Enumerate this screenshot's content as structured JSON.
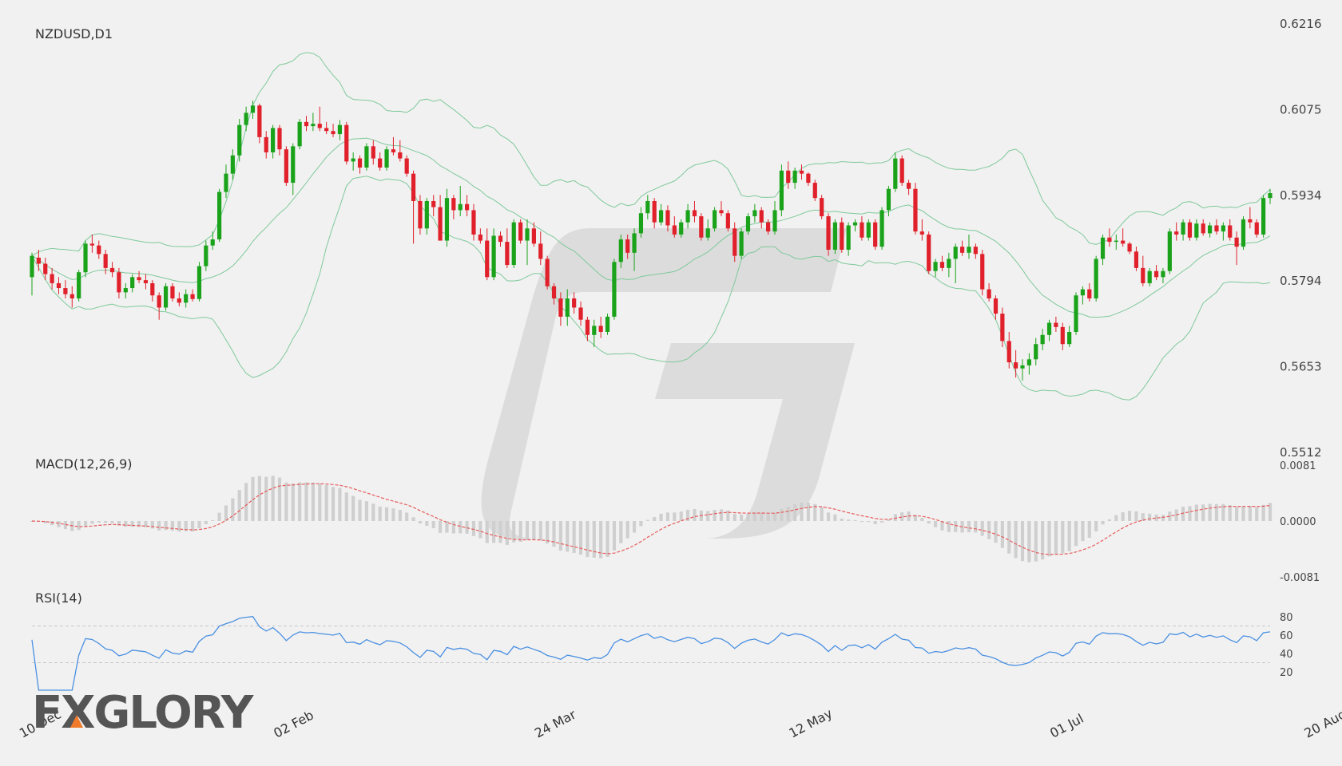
{
  "chart_data": {
    "type": "candlestick",
    "title": "NZDUSD,D1",
    "price_axis": {
      "ticks": [
        "0.6216",
        "0.6075",
        "0.5934",
        "0.5794",
        "0.5653",
        "0.5512"
      ],
      "range": [
        0.5512,
        0.6216
      ]
    },
    "date_labels": [
      "10 Dec",
      "02 Feb",
      "24 Mar",
      "12 May",
      "01 Jul",
      "20 Aug"
    ],
    "date_label_index": [
      0,
      38,
      77,
      115,
      154,
      192
    ],
    "colors": {
      "up": "#1aa31a",
      "down": "#e0202a",
      "bands": "#7fc99b",
      "macd_signal": "#e85a5a",
      "macd_hist": "#cfcfcf",
      "rsi": "#4a90e2"
    },
    "ohlc": [
      [
        0.58,
        0.584,
        0.577,
        0.5835
      ],
      [
        0.5832,
        0.5845,
        0.581,
        0.5822
      ],
      [
        0.5822,
        0.5832,
        0.5795,
        0.5805
      ],
      [
        0.5805,
        0.5815,
        0.578,
        0.579
      ],
      [
        0.579,
        0.58,
        0.5772,
        0.5782
      ],
      [
        0.5782,
        0.5795,
        0.5765,
        0.5772
      ],
      [
        0.5772,
        0.5785,
        0.575,
        0.5765
      ],
      [
        0.5765,
        0.5812,
        0.576,
        0.5808
      ],
      [
        0.5808,
        0.586,
        0.58,
        0.5855
      ],
      [
        0.5855,
        0.587,
        0.584,
        0.5852
      ],
      [
        0.5852,
        0.586,
        0.583,
        0.5838
      ],
      [
        0.5838,
        0.5845,
        0.5805,
        0.5815
      ],
      [
        0.5815,
        0.5825,
        0.58,
        0.5808
      ],
      [
        0.5808,
        0.5815,
        0.5765,
        0.5775
      ],
      [
        0.5775,
        0.579,
        0.5765,
        0.5782
      ],
      [
        0.5782,
        0.5805,
        0.5775,
        0.58
      ],
      [
        0.58,
        0.581,
        0.579,
        0.5795
      ],
      [
        0.5795,
        0.5805,
        0.578,
        0.579
      ],
      [
        0.579,
        0.5795,
        0.576,
        0.577
      ],
      [
        0.577,
        0.5775,
        0.573,
        0.575
      ],
      [
        0.575,
        0.579,
        0.5745,
        0.5785
      ],
      [
        0.5785,
        0.579,
        0.576,
        0.5765
      ],
      [
        0.5765,
        0.5775,
        0.5752,
        0.5758
      ],
      [
        0.5758,
        0.578,
        0.575,
        0.5772
      ],
      [
        0.5772,
        0.578,
        0.576,
        0.5764
      ],
      [
        0.5764,
        0.5825,
        0.576,
        0.5818
      ],
      [
        0.5818,
        0.586,
        0.581,
        0.5852
      ],
      [
        0.5852,
        0.5875,
        0.5845,
        0.5862
      ],
      [
        0.5862,
        0.5945,
        0.5858,
        0.594
      ],
      [
        0.594,
        0.5985,
        0.593,
        0.597
      ],
      [
        0.597,
        0.601,
        0.596,
        0.6
      ],
      [
        0.6,
        0.606,
        0.599,
        0.605
      ],
      [
        0.605,
        0.608,
        0.604,
        0.607
      ],
      [
        0.607,
        0.609,
        0.606,
        0.6082
      ],
      [
        0.6082,
        0.6085,
        0.602,
        0.603
      ],
      [
        0.603,
        0.604,
        0.5995,
        0.6005
      ],
      [
        0.6005,
        0.605,
        0.5995,
        0.6045
      ],
      [
        0.6045,
        0.605,
        0.6,
        0.601
      ],
      [
        0.601,
        0.6015,
        0.595,
        0.5955
      ],
      [
        0.5955,
        0.602,
        0.5935,
        0.6015
      ],
      [
        0.6015,
        0.606,
        0.601,
        0.6055
      ],
      [
        0.6055,
        0.6065,
        0.604,
        0.6048
      ],
      [
        0.6048,
        0.607,
        0.604,
        0.6052
      ],
      [
        0.6052,
        0.608,
        0.604,
        0.6045
      ],
      [
        0.6045,
        0.6055,
        0.6035,
        0.604
      ],
      [
        0.604,
        0.6052,
        0.603,
        0.6035
      ],
      [
        0.6035,
        0.6058,
        0.6025,
        0.605
      ],
      [
        0.605,
        0.6055,
        0.5985,
        0.599
      ],
      [
        0.599,
        0.6005,
        0.5975,
        0.5995
      ],
      [
        0.5995,
        0.6,
        0.597,
        0.598
      ],
      [
        0.598,
        0.602,
        0.5975,
        0.6015
      ],
      [
        0.6015,
        0.6025,
        0.5985,
        0.5995
      ],
      [
        0.5995,
        0.6005,
        0.5975,
        0.598
      ],
      [
        0.598,
        0.6015,
        0.5975,
        0.601
      ],
      [
        0.601,
        0.603,
        0.6,
        0.6005
      ],
      [
        0.6005,
        0.6025,
        0.599,
        0.5995
      ],
      [
        0.5995,
        0.6,
        0.5965,
        0.597
      ],
      [
        0.597,
        0.5975,
        0.5855,
        0.5925
      ],
      [
        0.5925,
        0.5935,
        0.587,
        0.588
      ],
      [
        0.588,
        0.593,
        0.587,
        0.5925
      ],
      [
        0.5925,
        0.5935,
        0.59,
        0.5915
      ],
      [
        0.5915,
        0.5935,
        0.586,
        0.586
      ],
      [
        0.586,
        0.5945,
        0.585,
        0.593
      ],
      [
        0.593,
        0.5935,
        0.5895,
        0.591
      ],
      [
        0.591,
        0.595,
        0.59,
        0.592
      ],
      [
        0.592,
        0.5935,
        0.59,
        0.591
      ],
      [
        0.591,
        0.592,
        0.586,
        0.587
      ],
      [
        0.587,
        0.588,
        0.5855,
        0.586
      ],
      [
        0.586,
        0.588,
        0.5795,
        0.58
      ],
      [
        0.58,
        0.588,
        0.5795,
        0.5868
      ],
      [
        0.5868,
        0.5875,
        0.585,
        0.5858
      ],
      [
        0.5858,
        0.588,
        0.5815,
        0.582
      ],
      [
        0.582,
        0.5895,
        0.5815,
        0.589
      ],
      [
        0.589,
        0.5895,
        0.5855,
        0.586
      ],
      [
        0.586,
        0.5895,
        0.582,
        0.588
      ],
      [
        0.588,
        0.589,
        0.585,
        0.5855
      ],
      [
        0.5855,
        0.5875,
        0.582,
        0.583
      ],
      [
        0.583,
        0.5835,
        0.578,
        0.5785
      ],
      [
        0.5785,
        0.579,
        0.5755,
        0.5765
      ],
      [
        0.5765,
        0.5775,
        0.572,
        0.5735
      ],
      [
        0.5735,
        0.578,
        0.572,
        0.5765
      ],
      [
        0.5765,
        0.5775,
        0.574,
        0.575
      ],
      [
        0.575,
        0.576,
        0.572,
        0.573
      ],
      [
        0.573,
        0.5735,
        0.5695,
        0.5705
      ],
      [
        0.5705,
        0.573,
        0.5685,
        0.572
      ],
      [
        0.572,
        0.5735,
        0.57,
        0.571
      ],
      [
        0.571,
        0.574,
        0.5705,
        0.5735
      ],
      [
        0.5735,
        0.583,
        0.573,
        0.5825
      ],
      [
        0.5825,
        0.587,
        0.5815,
        0.5862
      ],
      [
        0.5862,
        0.587,
        0.583,
        0.584
      ],
      [
        0.584,
        0.588,
        0.581,
        0.5872
      ],
      [
        0.5872,
        0.5915,
        0.5865,
        0.5905
      ],
      [
        0.5905,
        0.5935,
        0.5895,
        0.5925
      ],
      [
        0.5925,
        0.593,
        0.588,
        0.589
      ],
      [
        0.589,
        0.592,
        0.5885,
        0.591
      ],
      [
        0.591,
        0.5918,
        0.5875,
        0.5885
      ],
      [
        0.5885,
        0.59,
        0.5865,
        0.587
      ],
      [
        0.587,
        0.5895,
        0.5865,
        0.589
      ],
      [
        0.589,
        0.592,
        0.588,
        0.591
      ],
      [
        0.591,
        0.5925,
        0.589,
        0.59
      ],
      [
        0.59,
        0.5905,
        0.586,
        0.5865
      ],
      [
        0.5865,
        0.5895,
        0.586,
        0.588
      ],
      [
        0.588,
        0.5915,
        0.5875,
        0.591
      ],
      [
        0.591,
        0.5925,
        0.59,
        0.5905
      ],
      [
        0.5905,
        0.591,
        0.5875,
        0.588
      ],
      [
        0.588,
        0.589,
        0.5825,
        0.5835
      ],
      [
        0.5835,
        0.588,
        0.583,
        0.5875
      ],
      [
        0.5875,
        0.5905,
        0.587,
        0.59
      ],
      [
        0.59,
        0.592,
        0.589,
        0.591
      ],
      [
        0.591,
        0.5915,
        0.588,
        0.589
      ],
      [
        0.589,
        0.5895,
        0.587,
        0.5875
      ],
      [
        0.5875,
        0.5925,
        0.587,
        0.591
      ],
      [
        0.591,
        0.5985,
        0.59,
        0.5975
      ],
      [
        0.5975,
        0.599,
        0.5945,
        0.5955
      ],
      [
        0.5955,
        0.598,
        0.5945,
        0.5975
      ],
      [
        0.5975,
        0.5985,
        0.596,
        0.597
      ],
      [
        0.597,
        0.5972,
        0.595,
        0.5955
      ],
      [
        0.5955,
        0.596,
        0.5925,
        0.593
      ],
      [
        0.593,
        0.5935,
        0.5895,
        0.59
      ],
      [
        0.59,
        0.5905,
        0.5835,
        0.5845
      ],
      [
        0.5845,
        0.5895,
        0.5838,
        0.589
      ],
      [
        0.589,
        0.5898,
        0.584,
        0.5845
      ],
      [
        0.5845,
        0.589,
        0.5835,
        0.5885
      ],
      [
        0.5885,
        0.5895,
        0.5875,
        0.589
      ],
      [
        0.589,
        0.59,
        0.586,
        0.5865
      ],
      [
        0.5865,
        0.5895,
        0.586,
        0.589
      ],
      [
        0.589,
        0.5895,
        0.5845,
        0.585
      ],
      [
        0.585,
        0.5915,
        0.5845,
        0.591
      ],
      [
        0.591,
        0.595,
        0.59,
        0.5945
      ],
      [
        0.5945,
        0.6005,
        0.594,
        0.5995
      ],
      [
        0.5995,
        0.6,
        0.595,
        0.5955
      ],
      [
        0.5955,
        0.596,
        0.5935,
        0.5945
      ],
      [
        0.5945,
        0.5955,
        0.587,
        0.5875
      ],
      [
        0.5875,
        0.5895,
        0.586,
        0.587
      ],
      [
        0.587,
        0.5875,
        0.5805,
        0.581
      ],
      [
        0.581,
        0.583,
        0.58,
        0.5825
      ],
      [
        0.5825,
        0.5835,
        0.581,
        0.5815
      ],
      [
        0.5815,
        0.584,
        0.58,
        0.583
      ],
      [
        0.583,
        0.5855,
        0.579,
        0.585
      ],
      [
        0.585,
        0.586,
        0.5835,
        0.584
      ],
      [
        0.584,
        0.587,
        0.583,
        0.585
      ],
      [
        0.585,
        0.5855,
        0.583,
        0.5838
      ],
      [
        0.5838,
        0.5845,
        0.577,
        0.578
      ],
      [
        0.578,
        0.579,
        0.576,
        0.5765
      ],
      [
        0.5765,
        0.577,
        0.573,
        0.574
      ],
      [
        0.574,
        0.575,
        0.5685,
        0.5695
      ],
      [
        0.5695,
        0.571,
        0.565,
        0.566
      ],
      [
        0.566,
        0.568,
        0.5635,
        0.565
      ],
      [
        0.565,
        0.5665,
        0.563,
        0.5655
      ],
      [
        0.5655,
        0.5675,
        0.564,
        0.5665
      ],
      [
        0.5665,
        0.57,
        0.5655,
        0.569
      ],
      [
        0.569,
        0.5715,
        0.568,
        0.5705
      ],
      [
        0.5705,
        0.573,
        0.5695,
        0.5725
      ],
      [
        0.5725,
        0.5735,
        0.571,
        0.5718
      ],
      [
        0.5718,
        0.5725,
        0.568,
        0.569
      ],
      [
        0.569,
        0.572,
        0.5685,
        0.571
      ],
      [
        0.571,
        0.5775,
        0.5705,
        0.577
      ],
      [
        0.577,
        0.5785,
        0.5755,
        0.578
      ],
      [
        0.578,
        0.579,
        0.576,
        0.5765
      ],
      [
        0.5765,
        0.5835,
        0.576,
        0.583
      ],
      [
        0.583,
        0.587,
        0.582,
        0.5865
      ],
      [
        0.5865,
        0.588,
        0.585,
        0.5858
      ],
      [
        0.5858,
        0.587,
        0.5845,
        0.586
      ],
      [
        0.586,
        0.588,
        0.585,
        0.5855
      ],
      [
        0.5855,
        0.5858,
        0.5838,
        0.5842
      ],
      [
        0.5842,
        0.585,
        0.581,
        0.5815
      ],
      [
        0.5815,
        0.5835,
        0.5785,
        0.579
      ],
      [
        0.579,
        0.5815,
        0.5785,
        0.581
      ],
      [
        0.581,
        0.582,
        0.5795,
        0.58
      ],
      [
        0.58,
        0.5815,
        0.579,
        0.581
      ],
      [
        0.581,
        0.588,
        0.5805,
        0.5875
      ],
      [
        0.5875,
        0.589,
        0.586,
        0.587
      ],
      [
        0.587,
        0.5895,
        0.586,
        0.589
      ],
      [
        0.589,
        0.5895,
        0.586,
        0.5865
      ],
      [
        0.5865,
        0.5895,
        0.586,
        0.5888
      ],
      [
        0.5888,
        0.5895,
        0.5868,
        0.5872
      ],
      [
        0.5872,
        0.589,
        0.5865,
        0.5885
      ],
      [
        0.5885,
        0.5895,
        0.587,
        0.5875
      ],
      [
        0.5875,
        0.589,
        0.586,
        0.5885
      ],
      [
        0.5885,
        0.5895,
        0.586,
        0.5865
      ],
      [
        0.5865,
        0.5875,
        0.582,
        0.585
      ],
      [
        0.585,
        0.59,
        0.5845,
        0.5895
      ],
      [
        0.5895,
        0.5915,
        0.588,
        0.589
      ],
      [
        0.589,
        0.5895,
        0.5865,
        0.587
      ],
      [
        0.587,
        0.5935,
        0.5865,
        0.593
      ],
      [
        0.593,
        0.5945,
        0.592,
        0.5938
      ]
    ],
    "macd": {
      "ticks": [
        "0.0081",
        "0.0000",
        "-0.0081"
      ],
      "range": [
        -0.0081,
        0.0081
      ],
      "label": "MACD(12,26,9)"
    },
    "rsi": {
      "ticks": [
        "80",
        "60",
        "40",
        "20"
      ],
      "range": [
        0,
        100
      ],
      "levels": [
        70,
        30
      ],
      "label": "RSI(14)"
    }
  },
  "logo": {
    "text": "FXGLORY"
  }
}
